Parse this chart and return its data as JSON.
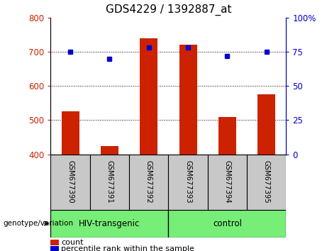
{
  "title": "GDS4229 / 1392887_at",
  "samples": [
    "GSM677390",
    "GSM677391",
    "GSM677392",
    "GSM677393",
    "GSM677394",
    "GSM677395"
  ],
  "counts": [
    525,
    425,
    740,
    720,
    510,
    575
  ],
  "percentiles": [
    75,
    70,
    78,
    78,
    72,
    75
  ],
  "ylim_left": [
    400,
    800
  ],
  "ylim_right": [
    0,
    100
  ],
  "yticks_left": [
    400,
    500,
    600,
    700,
    800
  ],
  "yticks_right": [
    0,
    25,
    50,
    75,
    100
  ],
  "bar_color": "#cc2200",
  "dot_color": "#0000cc",
  "bar_bottom": 400,
  "groups": [
    {
      "label": "HIV-transgenic",
      "color": "#77ee77"
    },
    {
      "label": "control",
      "color": "#77ee77"
    }
  ],
  "group_label": "genotype/variation",
  "legend_count_label": "count",
  "legend_percentile_label": "percentile rank within the sample",
  "tick_label_bg": "#c8c8c8",
  "plot_bg": "#ffffff",
  "grid_color": "#000000",
  "title_fontsize": 11,
  "axis_fontsize": 8.5,
  "bar_width": 0.45
}
